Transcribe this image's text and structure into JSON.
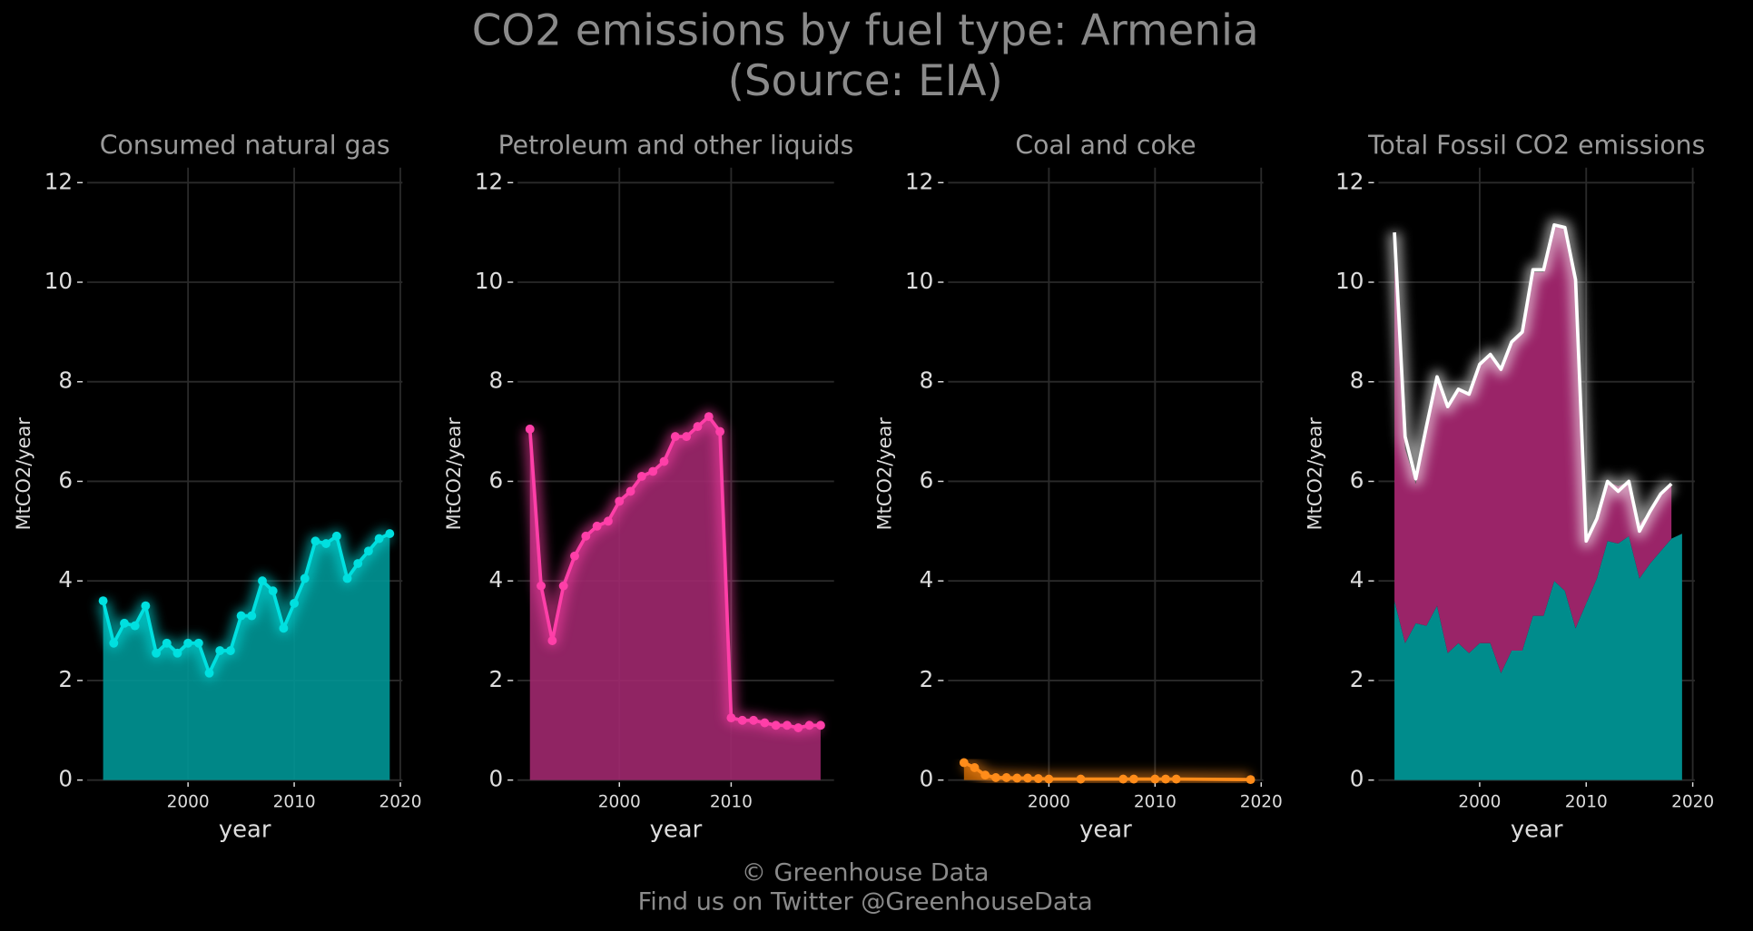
{
  "title": [
    "CO2 emissions by fuel type: Armenia",
    "(Source: EIA)"
  ],
  "credits": [
    "© Greenhouse Data",
    "Find us on Twitter @GreenhouseData"
  ],
  "chart_data": [
    {
      "type": "area",
      "title": "Consumed natural gas",
      "xlabel": "year",
      "ylabel": "MtCO2/year",
      "x": [
        1992,
        1993,
        1994,
        1995,
        1996,
        1997,
        1998,
        1999,
        2000,
        2001,
        2002,
        2003,
        2004,
        2005,
        2006,
        2007,
        2008,
        2009,
        2010,
        2011,
        2012,
        2013,
        2014,
        2015,
        2016,
        2017,
        2018,
        2019
      ],
      "series": [
        {
          "color": "#00e0e0",
          "fill": "#009696",
          "values": [
            3.6,
            2.75,
            3.15,
            3.1,
            3.5,
            2.55,
            2.75,
            2.55,
            2.75,
            2.75,
            2.15,
            2.6,
            2.6,
            3.3,
            3.3,
            4.0,
            3.8,
            3.05,
            3.55,
            4.05,
            4.8,
            4.75,
            4.9,
            4.05,
            4.35,
            4.6,
            4.85,
            4.95
          ]
        }
      ],
      "xlim": [
        1990.5,
        2020.2
      ],
      "ylim": [
        0,
        12.3
      ],
      "xticks": [
        2000,
        2010,
        2020
      ],
      "yticks": [
        0,
        2,
        4,
        6,
        8,
        10,
        12
      ],
      "grid": true
    },
    {
      "type": "area",
      "title": "Petroleum and other liquids",
      "xlabel": "year",
      "ylabel": "MtCO2/year",
      "x": [
        1992,
        1993,
        1994,
        1995,
        1996,
        1997,
        1998,
        1999,
        2000,
        2001,
        2002,
        2003,
        2004,
        2005,
        2006,
        2007,
        2008,
        2009,
        2010,
        2011,
        2012,
        2013,
        2014,
        2015,
        2016,
        2017,
        2018
      ],
      "series": [
        {
          "color": "#ff3fa8",
          "fill": "#a0286e",
          "values": [
            7.05,
            3.9,
            2.8,
            3.9,
            4.5,
            4.9,
            5.1,
            5.2,
            5.6,
            5.8,
            6.1,
            6.2,
            6.4,
            6.9,
            6.9,
            7.1,
            7.3,
            7.0,
            1.25,
            1.2,
            1.2,
            1.15,
            1.1,
            1.1,
            1.05,
            1.1,
            1.1
          ]
        }
      ],
      "xlim": [
        1990.9,
        2019.2
      ],
      "ylim": [
        0,
        12.3
      ],
      "xticks": [
        2000,
        2010
      ],
      "yticks": [
        0,
        2,
        4,
        6,
        8,
        10,
        12
      ],
      "grid": true
    },
    {
      "type": "area",
      "title": "Coal and coke",
      "xlabel": "year",
      "ylabel": "MtCO2/year",
      "x": [
        1992,
        1993,
        1994,
        1995,
        1996,
        1997,
        1998,
        1999,
        2000,
        2003,
        2007,
        2008,
        2010,
        2011,
        2012,
        2019
      ],
      "series": [
        {
          "color": "#ff8c1a",
          "fill": "#b35a00",
          "values": [
            0.35,
            0.25,
            0.1,
            0.05,
            0.05,
            0.04,
            0.04,
            0.03,
            0.02,
            0.02,
            0.02,
            0.02,
            0.02,
            0.02,
            0.02,
            0.01
          ]
        }
      ],
      "xlim": [
        1990.5,
        2020.2
      ],
      "ylim": [
        0,
        12.3
      ],
      "xticks": [
        2000,
        2010,
        2020
      ],
      "yticks": [
        0,
        2,
        4,
        6,
        8,
        10,
        12
      ],
      "grid": true
    },
    {
      "type": "stacked_area",
      "title": "Total Fossil CO2 emissions",
      "xlabel": "year",
      "ylabel": "MtCO2/year",
      "x": [
        1992,
        1993,
        1994,
        1995,
        1996,
        1997,
        1998,
        1999,
        2000,
        2001,
        2002,
        2003,
        2004,
        2005,
        2006,
        2007,
        2008,
        2009,
        2010,
        2011,
        2012,
        2013,
        2014,
        2015,
        2016,
        2017,
        2018,
        2019
      ],
      "series": [
        {
          "fill": "#008c8c",
          "values": [
            3.6,
            2.75,
            3.15,
            3.1,
            3.5,
            2.55,
            2.75,
            2.55,
            2.75,
            2.75,
            2.15,
            2.6,
            2.6,
            3.3,
            3.3,
            4.0,
            3.8,
            3.05,
            3.55,
            4.05,
            4.8,
            4.75,
            4.9,
            4.05,
            4.35,
            4.6,
            4.85,
            4.95
          ]
        },
        {
          "fill": "#9a2468",
          "values": [
            7.05,
            3.9,
            2.8,
            3.9,
            4.5,
            4.9,
            5.1,
            5.2,
            5.6,
            5.8,
            6.1,
            6.2,
            6.4,
            6.9,
            6.9,
            7.1,
            7.3,
            7.0,
            1.25,
            1.2,
            1.2,
            1.15,
            1.1,
            1.1,
            1.05,
            1.1,
            1.1,
            null
          ]
        }
      ],
      "total": {
        "color": "#ffffff",
        "values": [
          11.0,
          6.9,
          6.05,
          7.1,
          8.1,
          7.5,
          7.85,
          7.75,
          8.35,
          8.55,
          8.25,
          8.8,
          9.0,
          10.25,
          10.25,
          11.15,
          11.1,
          10.05,
          4.8,
          5.25,
          6.0,
          5.8,
          6.0,
          5.0,
          5.4,
          5.75,
          5.95,
          null
        ]
      },
      "xlim": [
        1990.5,
        2020.2
      ],
      "ylim": [
        0,
        12.3
      ],
      "xticks": [
        2000,
        2010,
        2020
      ],
      "yticks": [
        0,
        2,
        4,
        6,
        8,
        10,
        12
      ],
      "grid": true
    }
  ]
}
